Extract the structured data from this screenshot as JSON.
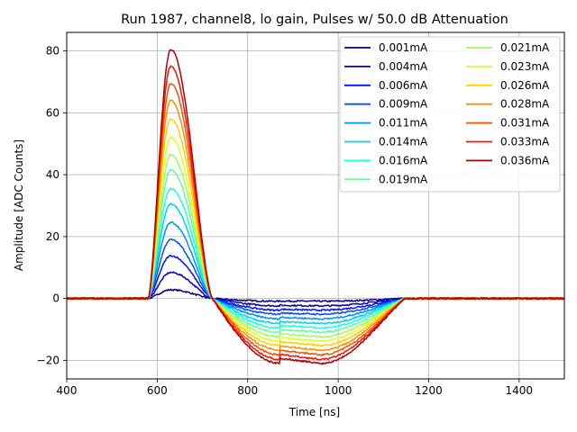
{
  "chart_data": {
    "type": "line",
    "title": "Run 1987, channel8, lo gain, Pulses w/ 50.0 dB Attenuation",
    "xlabel": "Time [ns]",
    "ylabel": "Amplitude [ADC Counts]",
    "xlim": [
      400,
      1500
    ],
    "ylim": [
      -26,
      86
    ],
    "xticks": [
      400,
      600,
      800,
      1000,
      1200,
      1400
    ],
    "yticks": [
      -20,
      0,
      20,
      40,
      60,
      80
    ],
    "xtick_labels": [
      "400",
      "600",
      "800",
      "1000",
      "1200",
      "1400"
    ],
    "ytick_labels": [
      "−20",
      "0",
      "20",
      "40",
      "60",
      "80"
    ],
    "grid": true,
    "legend_position": "top-right",
    "legend_columns": 2,
    "pulse_shape": {
      "baseline_until": 580,
      "peak_time": 630,
      "zero_crossing": 722,
      "undershoot_min_time": 960,
      "recovery_end": 1150
    },
    "series": [
      {
        "name": "0.001mA",
        "color": "#00008f",
        "peak": 2.8,
        "undershoot": -0.9
      },
      {
        "name": "0.004mA",
        "color": "#0000c8",
        "peak": 8.4,
        "undershoot": -2.4
      },
      {
        "name": "0.006mA",
        "color": "#0010ff",
        "peak": 13.8,
        "undershoot": -3.8
      },
      {
        "name": "0.009mA",
        "color": "#0050ff",
        "peak": 19.0,
        "undershoot": -5.1
      },
      {
        "name": "0.011mA",
        "color": "#0090ff",
        "peak": 24.5,
        "undershoot": -6.6
      },
      {
        "name": "0.014mA",
        "color": "#00d0ff",
        "peak": 30.5,
        "undershoot": -8.1
      },
      {
        "name": "0.016mA",
        "color": "#20ffdf",
        "peak": 35.5,
        "undershoot": -9.5
      },
      {
        "name": "0.019mA",
        "color": "#60ff9f",
        "peak": 41.5,
        "undershoot": -10.9
      },
      {
        "name": "0.021mA",
        "color": "#a0ff5f",
        "peak": 46.5,
        "undershoot": -12.4
      },
      {
        "name": "0.023mA",
        "color": "#dfff20",
        "peak": 52.0,
        "undershoot": -13.8
      },
      {
        "name": "0.026mA",
        "color": "#ffd000",
        "peak": 58.0,
        "undershoot": -15.2
      },
      {
        "name": "0.028mA",
        "color": "#ff9000",
        "peak": 64.0,
        "undershoot": -16.7
      },
      {
        "name": "0.031mA",
        "color": "#ff5000",
        "peak": 69.5,
        "undershoot": -18.2
      },
      {
        "name": "0.033mA",
        "color": "#ff1000",
        "peak": 75.0,
        "undershoot": -19.7
      },
      {
        "name": "0.036mA",
        "color": "#b00000",
        "peak": 80.5,
        "undershoot": -21.0
      }
    ]
  }
}
